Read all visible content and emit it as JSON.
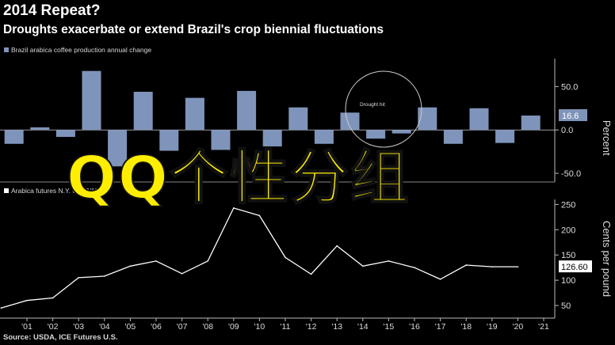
{
  "title": "2014 Repeat?",
  "subtitle": "Droughts exacerbate or extend Brazil's crop biennial fluctuations",
  "source": "Source: USDA, ICE Futures U.S.",
  "overlay_text": "QQ个性分组",
  "colors": {
    "bar": "#7f94ba",
    "line": "#ffffff",
    "background": "#000000",
    "label_box": "#7f94ba",
    "overlay": "#ffee00"
  },
  "chart_data": [
    {
      "type": "bar",
      "legend": "Brazil arabica coffee production annual change",
      "ylabel": "Percent",
      "ylim": [
        -60,
        75
      ],
      "yticks": [
        -50,
        0,
        50
      ],
      "ytick_labels": [
        "-50.0",
        "0.0",
        "50.0"
      ],
      "last_value_label": "16.6",
      "annotation": "Drought hit",
      "grid": false,
      "x": [
        2000.5,
        2001.5,
        2002.5,
        2003.5,
        2004.5,
        2005.5,
        2006.5,
        2007.5,
        2008.5,
        2009.5,
        2010.5,
        2011.5,
        2012.5,
        2013.5,
        2014.5,
        2015.5,
        2016.5,
        2017.5,
        2018.5,
        2019.5,
        2020.5
      ],
      "values": [
        -16,
        3,
        -8,
        68,
        -42,
        44,
        -24,
        37,
        -23,
        45,
        -19,
        26,
        -16,
        20,
        -10,
        -4,
        26,
        -16,
        25,
        -15,
        16.6
      ]
    },
    {
      "type": "line",
      "legend": "Arabica futures N.Y. on 12/17/20",
      "ylabel": "Cents per pound",
      "ylim": [
        25,
        260
      ],
      "yticks": [
        50,
        100,
        150,
        200,
        250
      ],
      "ytick_labels": [
        "50",
        "100",
        "150",
        "200",
        "250"
      ],
      "last_value_label": "126.60",
      "grid": false,
      "x": [
        2000,
        2001,
        2002,
        2003,
        2004,
        2005,
        2006,
        2007,
        2008,
        2009,
        2010,
        2011,
        2012,
        2013,
        2014,
        2015,
        2016,
        2017,
        2018,
        2019,
        2020
      ],
      "values": [
        45,
        60,
        65,
        105,
        108,
        128,
        138,
        113,
        138,
        243,
        228,
        145,
        112,
        168,
        128,
        138,
        125,
        102,
        130,
        126.6,
        126.6
      ]
    }
  ],
  "x_axis": {
    "tick_labels": [
      "'01",
      "'02",
      "'03",
      "'04",
      "'05",
      "'06",
      "'07",
      "'08",
      "'09",
      "'10",
      "'11",
      "'12",
      "'13",
      "'14",
      "'15",
      "'16",
      "'17",
      "'18",
      "'19",
      "'20",
      "'21"
    ],
    "tick_years": [
      2001,
      2002,
      2003,
      2004,
      2005,
      2006,
      2007,
      2008,
      2009,
      2010,
      2011,
      2012,
      2013,
      2014,
      2015,
      2016,
      2017,
      2018,
      2019,
      2020,
      2021
    ]
  }
}
